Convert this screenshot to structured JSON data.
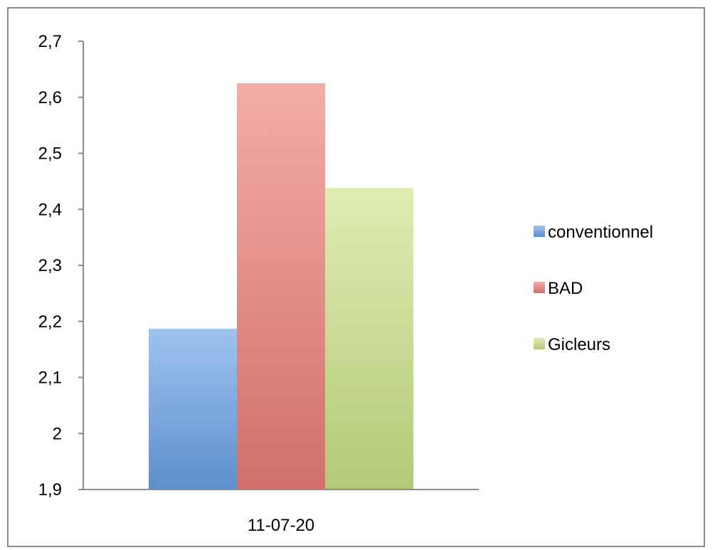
{
  "chart_data": {
    "type": "bar",
    "categories": [
      "11-07-20"
    ],
    "series": [
      {
        "name": "conventionnel",
        "values": [
          2.187
        ],
        "color": "#6aa2e8"
      },
      {
        "name": "BAD",
        "values": [
          2.625
        ],
        "color": "#ee7f78"
      },
      {
        "name": "Gicleurs",
        "values": [
          2.438
        ],
        "color": "#cce488"
      }
    ],
    "ylim": [
      1.9,
      2.7
    ],
    "yticks": [
      "1,9",
      "2",
      "2,1",
      "2,2",
      "2,3",
      "2,4",
      "2,5",
      "2,6",
      "2,7"
    ],
    "ytick_values": [
      1.9,
      2.0,
      2.1,
      2.2,
      2.3,
      2.4,
      2.5,
      2.6,
      2.7
    ],
    "legend_position": "right",
    "grid": false,
    "title": "",
    "xlabel": "",
    "ylabel": ""
  }
}
